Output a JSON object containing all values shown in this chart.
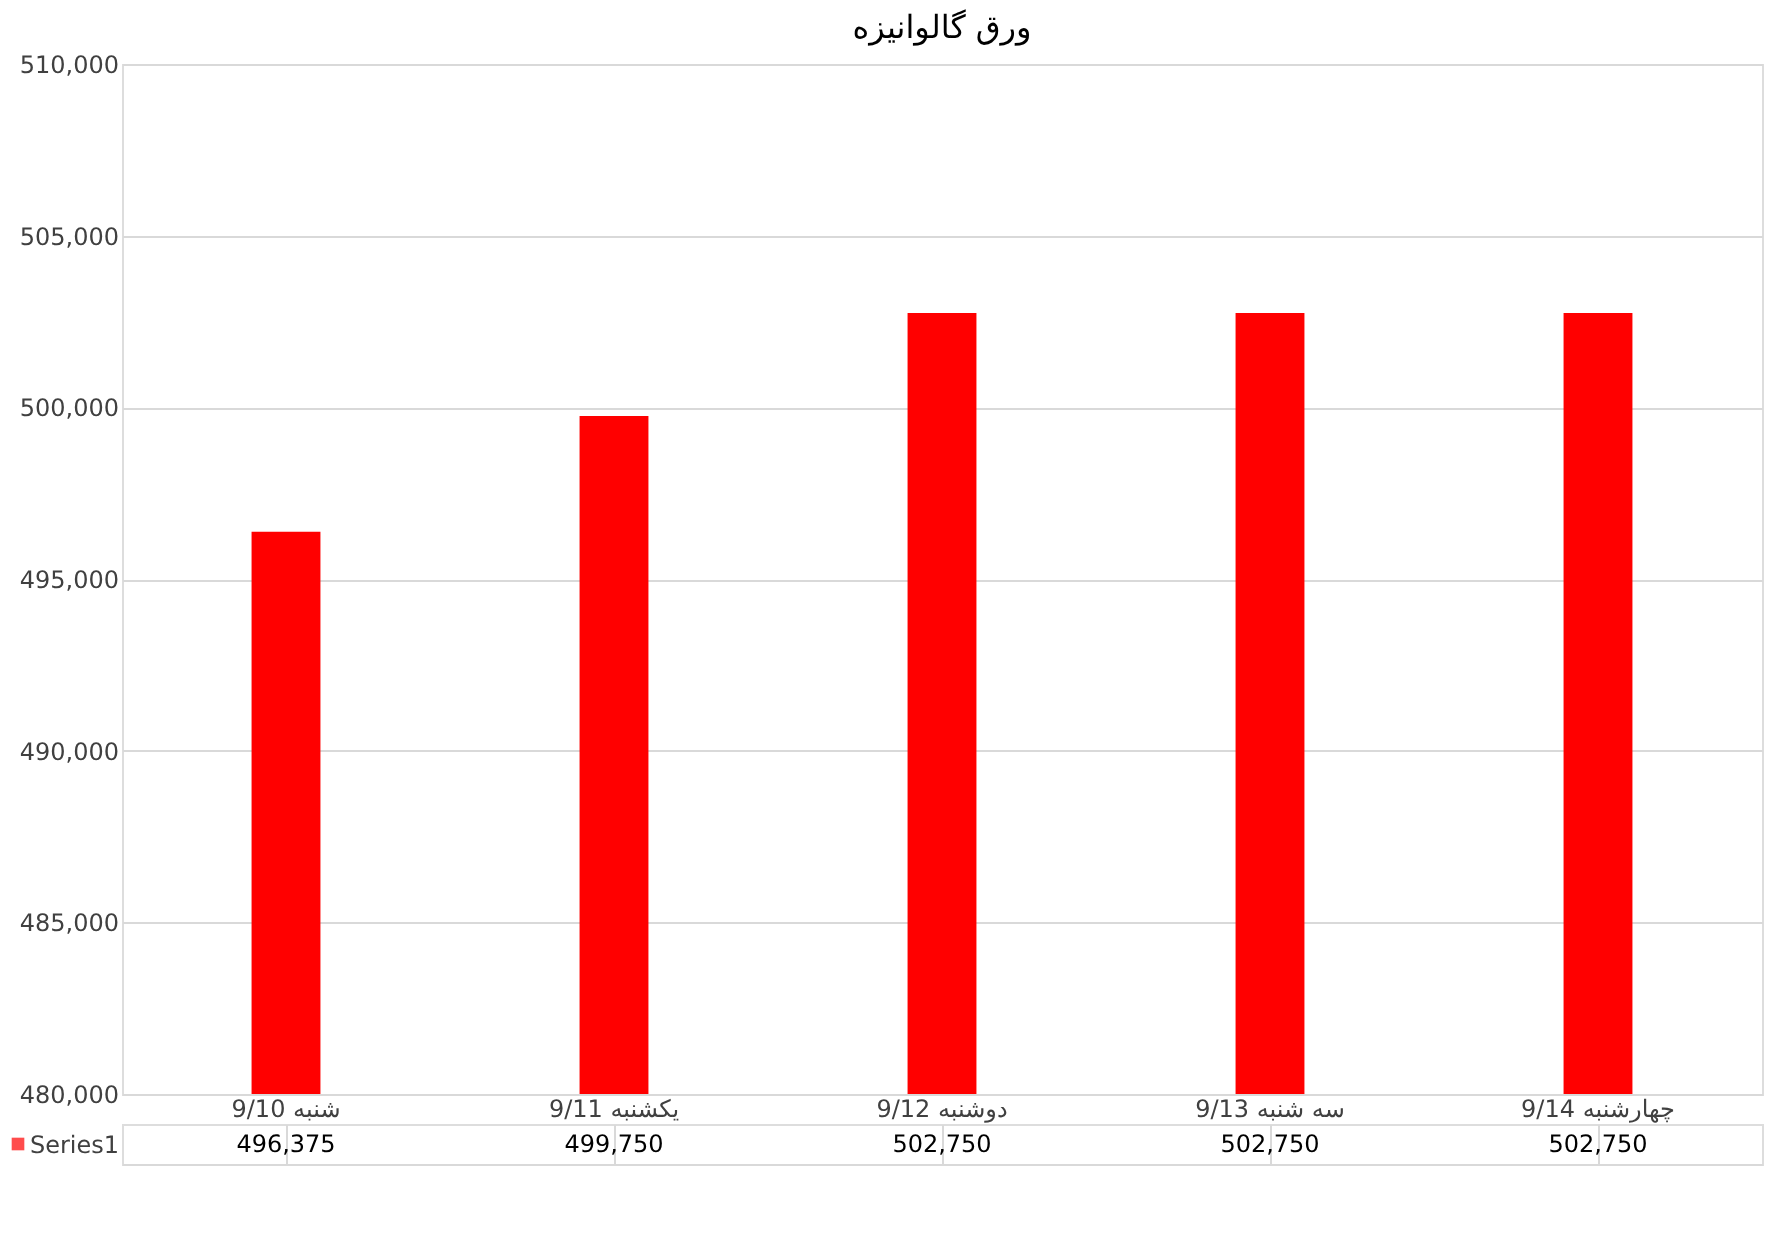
{
  "chart_data": {
    "type": "bar",
    "title": "ورق گالوانیزه",
    "categories": [
      "شنبه 9/10",
      "یکشنبه 9/11",
      "دوشنبه 9/12",
      "سه شنبه 9/13",
      "چهارشنبه 9/14"
    ],
    "series": [
      {
        "name": "Series1",
        "color": "#ff0000",
        "values": [
          496375,
          499750,
          502750,
          502750,
          502750
        ],
        "value_labels": [
          "496,375",
          "499,750",
          "502,750",
          "502,750",
          "502,750"
        ]
      }
    ],
    "ylim": [
      480000,
      510000
    ],
    "yticks": [
      {
        "value": 480000,
        "label": "480,000"
      },
      {
        "value": 485000,
        "label": "485,000"
      },
      {
        "value": 490000,
        "label": "490,000"
      },
      {
        "value": 495000,
        "label": "495,000"
      },
      {
        "value": 500000,
        "label": "500,000"
      },
      {
        "value": 505000,
        "label": "505,000"
      },
      {
        "value": 510000,
        "label": "510,000"
      }
    ],
    "grid": "y"
  }
}
